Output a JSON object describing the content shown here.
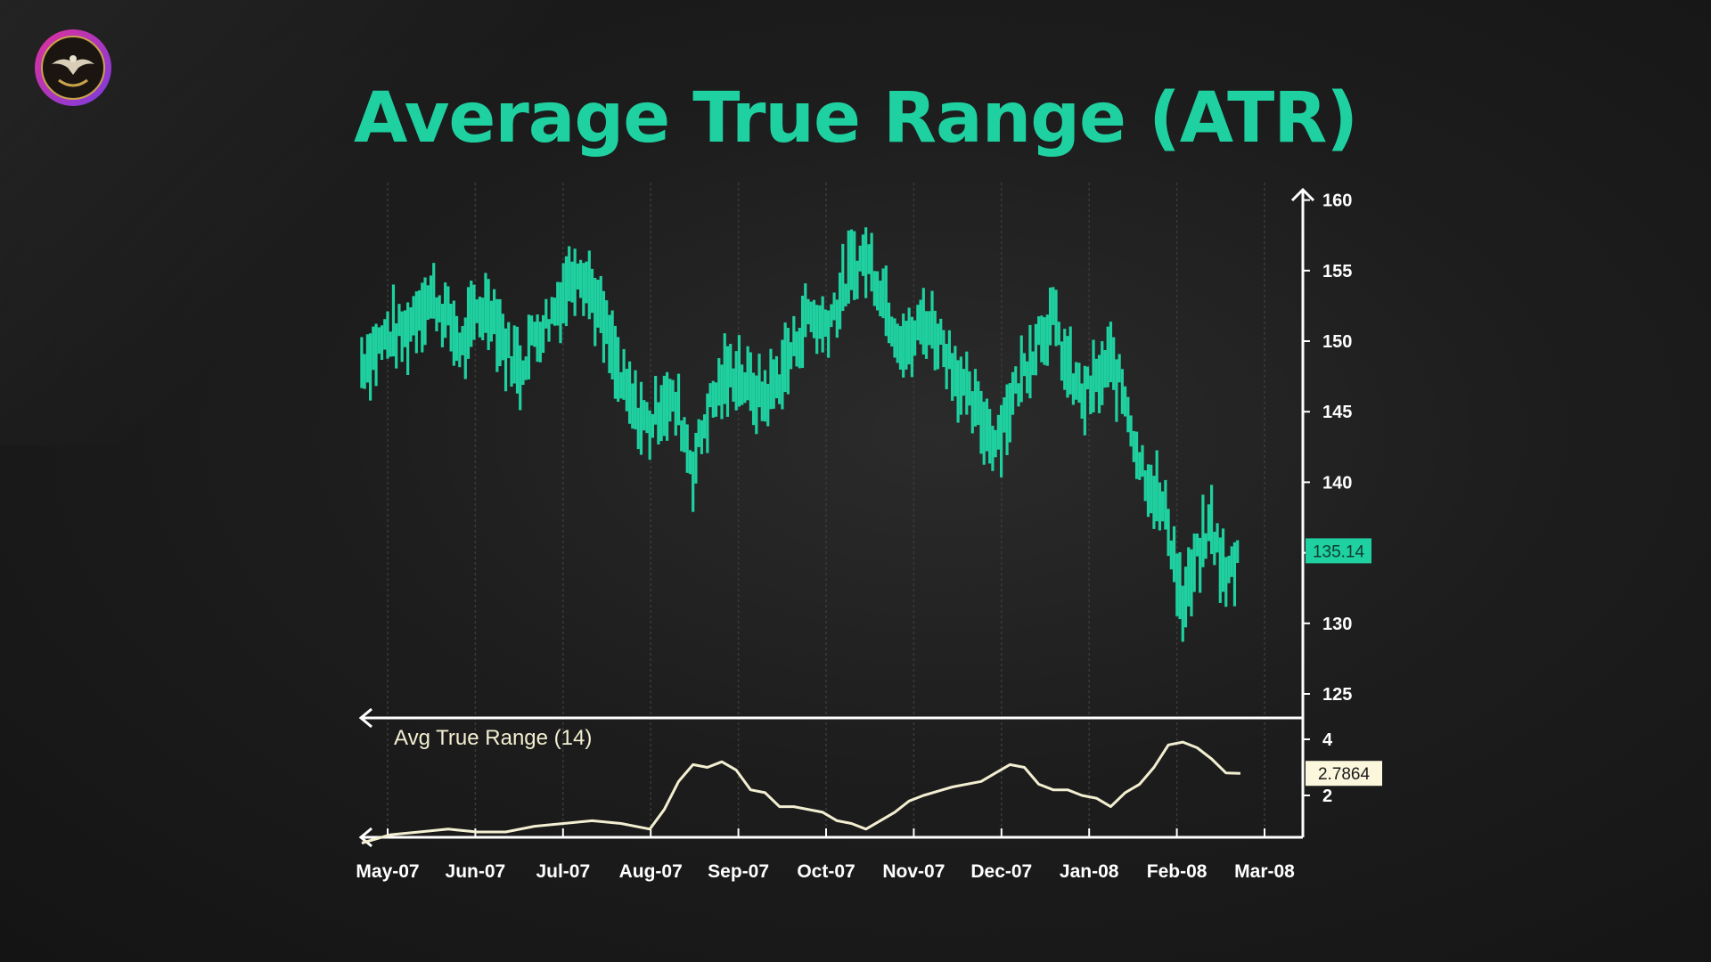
{
  "title": "Average True Range (ATR)",
  "colors": {
    "accent": "#1fd1a0",
    "atr_line": "#f3efd2",
    "axis": "#ffffff",
    "price_badge_text": "#0f3a30",
    "atr_badge_bg": "#fbf7dc"
  },
  "logo": {
    "icon": "eagle-emblem-icon"
  },
  "chart_data": [
    {
      "type": "line",
      "style": "ohlc-bars",
      "x_ticks": [
        "May-07",
        "Jun-07",
        "Jul-07",
        "Aug-07",
        "Sep-07",
        "Oct-07",
        "Nov-07",
        "Dec-07",
        "Jan-08",
        "Feb-08",
        "Mar-08"
      ],
      "y_ticks": [
        125,
        130,
        135,
        140,
        145,
        150,
        155,
        160
      ],
      "ylim": [
        123.5,
        161
      ],
      "grid": "vertical",
      "last_value_label": "135.14",
      "series": [
        {
          "x": [
            "2007-04-22",
            "2007-04-27",
            "2007-05-02",
            "2007-05-07",
            "2007-05-12",
            "2007-05-17",
            "2007-05-22",
            "2007-05-27",
            "2007-06-01",
            "2007-06-06",
            "2007-06-11",
            "2007-06-16",
            "2007-06-21",
            "2007-06-26",
            "2007-07-01",
            "2007-07-06",
            "2007-07-11",
            "2007-07-16",
            "2007-07-21",
            "2007-07-26",
            "2007-07-31",
            "2007-08-05",
            "2007-08-10",
            "2007-08-15",
            "2007-08-20",
            "2007-08-25",
            "2007-08-30",
            "2007-09-04",
            "2007-09-09",
            "2007-09-14",
            "2007-09-19",
            "2007-09-24",
            "2007-09-29",
            "2007-10-04",
            "2007-10-09",
            "2007-10-14",
            "2007-10-19",
            "2007-10-24",
            "2007-10-29",
            "2007-11-03",
            "2007-11-08",
            "2007-11-13",
            "2007-11-18",
            "2007-11-23",
            "2007-11-28",
            "2007-12-03",
            "2007-12-08",
            "2007-12-13",
            "2007-12-18",
            "2007-12-23",
            "2007-12-28",
            "2008-01-02",
            "2008-01-07",
            "2008-01-12",
            "2008-01-17",
            "2008-01-22",
            "2008-01-27",
            "2008-02-01",
            "2008-02-06",
            "2008-02-11",
            "2008-02-16",
            "2008-02-21"
          ],
          "values": [
            148.5,
            149.5,
            150.5,
            150.5,
            152.5,
            153,
            151.5,
            149.5,
            152,
            152.5,
            149.5,
            148,
            150.5,
            151.5,
            153.5,
            155.5,
            153.5,
            150.5,
            147,
            145,
            144,
            146,
            145,
            141,
            145,
            147,
            148,
            146.5,
            146,
            147.5,
            149.5,
            152,
            151,
            152.5,
            155,
            156,
            154,
            151,
            149.5,
            151.5,
            150.5,
            148.5,
            146,
            144.5,
            143,
            145.5,
            148,
            150.5,
            151.5,
            148,
            146,
            147,
            148.5,
            146,
            141.5,
            139.5,
            137,
            131,
            134.5,
            137,
            133,
            135.14
          ]
        }
      ]
    },
    {
      "type": "line",
      "title": "Avg True Range (14)",
      "y_ticks": [
        2,
        4
      ],
      "ylim": [
        0,
        4.6
      ],
      "last_value_label": "2.7864",
      "series": [
        {
          "name": "Avg True Range (14)",
          "x": [
            "2007-04-22",
            "2007-05-02",
            "2007-05-12",
            "2007-05-22",
            "2007-06-01",
            "2007-06-11",
            "2007-06-21",
            "2007-07-01",
            "2007-07-11",
            "2007-07-21",
            "2007-07-31",
            "2007-08-05",
            "2007-08-10",
            "2007-08-15",
            "2007-08-20",
            "2007-08-25",
            "2007-08-30",
            "2007-09-04",
            "2007-09-09",
            "2007-09-14",
            "2007-09-19",
            "2007-09-29",
            "2007-10-04",
            "2007-10-09",
            "2007-10-14",
            "2007-10-19",
            "2007-10-24",
            "2007-10-29",
            "2007-11-03",
            "2007-11-13",
            "2007-11-23",
            "2007-11-28",
            "2007-12-03",
            "2007-12-08",
            "2007-12-13",
            "2007-12-18",
            "2007-12-23",
            "2007-12-28",
            "2008-01-02",
            "2008-01-07",
            "2008-01-12",
            "2008-01-17",
            "2008-01-22",
            "2008-01-27",
            "2008-02-01",
            "2008-02-06",
            "2008-02-11",
            "2008-02-16",
            "2008-02-21"
          ],
          "values": [
            0.3,
            0.6,
            0.7,
            0.8,
            0.7,
            0.7,
            0.9,
            1.0,
            1.1,
            1.0,
            0.8,
            1.5,
            2.5,
            3.1,
            3.0,
            3.2,
            2.9,
            2.2,
            2.1,
            1.6,
            1.6,
            1.4,
            1.1,
            1.0,
            0.8,
            1.1,
            1.4,
            1.8,
            2.0,
            2.3,
            2.5,
            2.8,
            3.1,
            3.0,
            2.4,
            2.2,
            2.2,
            2.0,
            1.9,
            1.6,
            2.1,
            2.4,
            3.0,
            3.8,
            3.9,
            3.7,
            3.3,
            2.8,
            2.7864
          ]
        }
      ]
    }
  ]
}
